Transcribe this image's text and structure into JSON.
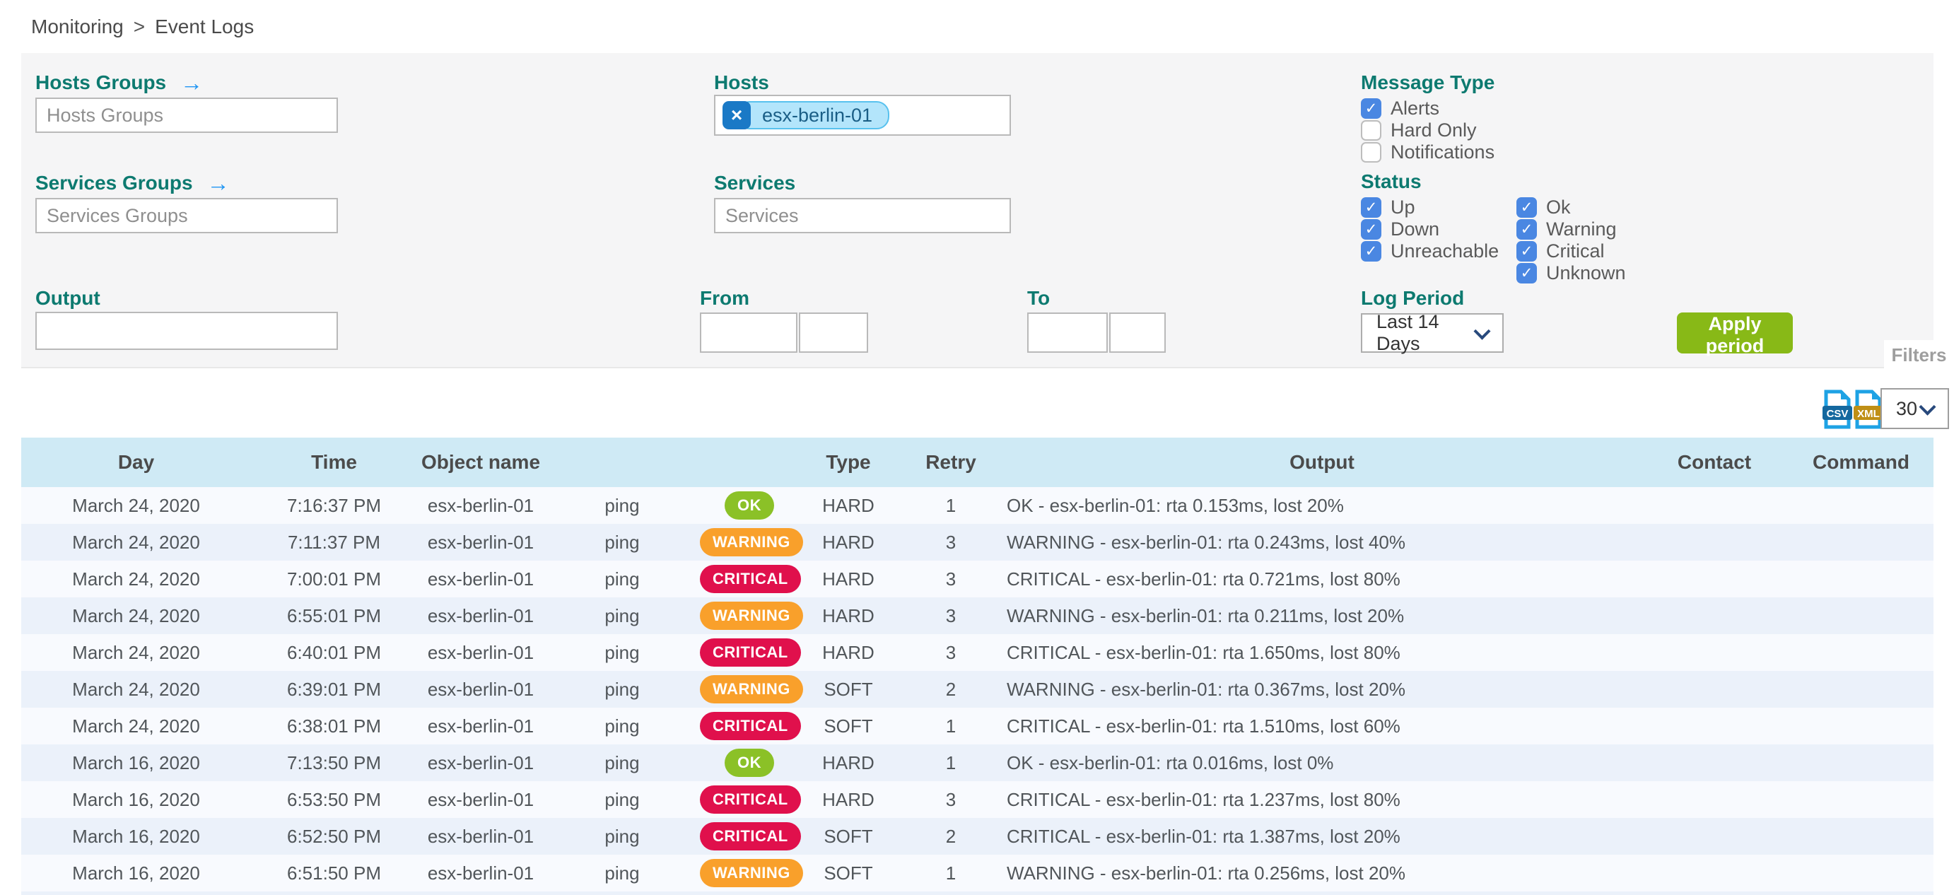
{
  "breadcrumb": {
    "items": [
      "Monitoring",
      "Event Logs"
    ],
    "separator": ">"
  },
  "filters": {
    "hosts_groups": {
      "label": "Hosts Groups",
      "placeholder": "Hosts Groups",
      "value": ""
    },
    "services_groups": {
      "label": "Services Groups",
      "placeholder": "Services Groups",
      "value": ""
    },
    "hosts": {
      "label": "Hosts",
      "chips": [
        "esx-berlin-01"
      ]
    },
    "services": {
      "label": "Services",
      "placeholder": "Services",
      "value": ""
    },
    "output": {
      "label": "Output",
      "value": ""
    },
    "from": {
      "label": "From",
      "date_value": "",
      "time_value": ""
    },
    "to": {
      "label": "To",
      "date_value": "",
      "time_value": ""
    },
    "message_type": {
      "label": "Message Type",
      "options": [
        {
          "label": "Alerts",
          "checked": true
        },
        {
          "label": "Hard Only",
          "checked": false
        },
        {
          "label": "Notifications",
          "checked": false
        }
      ]
    },
    "status": {
      "label": "Status",
      "host_options": [
        {
          "label": "Up",
          "checked": true
        },
        {
          "label": "Down",
          "checked": true
        },
        {
          "label": "Unreachable",
          "checked": true
        }
      ],
      "service_options": [
        {
          "label": "Ok",
          "checked": true
        },
        {
          "label": "Warning",
          "checked": true
        },
        {
          "label": "Critical",
          "checked": true
        },
        {
          "label": "Unknown",
          "checked": true
        }
      ]
    },
    "log_period": {
      "label": "Log Period",
      "selected": "Last 14 Days"
    },
    "apply_button_label": "Apply period",
    "filters_tab_label": "Filters"
  },
  "toolbar": {
    "export_csv_label": "CSV",
    "export_xml_label": "XML",
    "page_size_selected": "30"
  },
  "table": {
    "columns": [
      "Day",
      "Time",
      "Object name",
      "",
      "",
      "Type",
      "Retry",
      "Output",
      "Contact",
      "Command"
    ],
    "rows": [
      {
        "day": "March 24, 2020",
        "time": "7:16:37 PM",
        "object": "esx-berlin-01",
        "service": "ping",
        "status": "OK",
        "type": "HARD",
        "retry": "1",
        "output": "OK - esx-berlin-01: rta 0.153ms, lost 20%",
        "contact": "",
        "command": ""
      },
      {
        "day": "March 24, 2020",
        "time": "7:11:37 PM",
        "object": "esx-berlin-01",
        "service": "ping",
        "status": "WARNING",
        "type": "HARD",
        "retry": "3",
        "output": "WARNING - esx-berlin-01: rta 0.243ms, lost 40%",
        "contact": "",
        "command": ""
      },
      {
        "day": "March 24, 2020",
        "time": "7:00:01 PM",
        "object": "esx-berlin-01",
        "service": "ping",
        "status": "CRITICAL",
        "type": "HARD",
        "retry": "3",
        "output": "CRITICAL - esx-berlin-01: rta 0.721ms, lost 80%",
        "contact": "",
        "command": ""
      },
      {
        "day": "March 24, 2020",
        "time": "6:55:01 PM",
        "object": "esx-berlin-01",
        "service": "ping",
        "status": "WARNING",
        "type": "HARD",
        "retry": "3",
        "output": "WARNING - esx-berlin-01: rta 0.211ms, lost 20%",
        "contact": "",
        "command": ""
      },
      {
        "day": "March 24, 2020",
        "time": "6:40:01 PM",
        "object": "esx-berlin-01",
        "service": "ping",
        "status": "CRITICAL",
        "type": "HARD",
        "retry": "3",
        "output": "CRITICAL - esx-berlin-01: rta 1.650ms, lost 80%",
        "contact": "",
        "command": ""
      },
      {
        "day": "March 24, 2020",
        "time": "6:39:01 PM",
        "object": "esx-berlin-01",
        "service": "ping",
        "status": "WARNING",
        "type": "SOFT",
        "retry": "2",
        "output": "WARNING - esx-berlin-01: rta 0.367ms, lost 20%",
        "contact": "",
        "command": ""
      },
      {
        "day": "March 24, 2020",
        "time": "6:38:01 PM",
        "object": "esx-berlin-01",
        "service": "ping",
        "status": "CRITICAL",
        "type": "SOFT",
        "retry": "1",
        "output": "CRITICAL - esx-berlin-01: rta 1.510ms, lost 60%",
        "contact": "",
        "command": ""
      },
      {
        "day": "March 16, 2020",
        "time": "7:13:50 PM",
        "object": "esx-berlin-01",
        "service": "ping",
        "status": "OK",
        "type": "HARD",
        "retry": "1",
        "output": "OK - esx-berlin-01: rta 0.016ms, lost 0%",
        "contact": "",
        "command": ""
      },
      {
        "day": "March 16, 2020",
        "time": "6:53:50 PM",
        "object": "esx-berlin-01",
        "service": "ping",
        "status": "CRITICAL",
        "type": "HARD",
        "retry": "3",
        "output": "CRITICAL - esx-berlin-01: rta 1.237ms, lost 80%",
        "contact": "",
        "command": ""
      },
      {
        "day": "March 16, 2020",
        "time": "6:52:50 PM",
        "object": "esx-berlin-01",
        "service": "ping",
        "status": "CRITICAL",
        "type": "SOFT",
        "retry": "2",
        "output": "CRITICAL - esx-berlin-01: rta 1.387ms, lost 20%",
        "contact": "",
        "command": ""
      },
      {
        "day": "March 16, 2020",
        "time": "6:51:50 PM",
        "object": "esx-berlin-01",
        "service": "ping",
        "status": "WARNING",
        "type": "SOFT",
        "retry": "1",
        "output": "WARNING - esx-berlin-01: rta 0.256ms, lost 20%",
        "contact": "",
        "command": ""
      }
    ]
  },
  "colors": {
    "label_teal": "#0d7a70",
    "checkbox_blue": "#4a87e2",
    "apply_green": "#88b917",
    "badge_ok": "#8bc127",
    "badge_warning": "#f9a02b",
    "badge_critical": "#e0104c",
    "table_header_blue": "#cfeaf5",
    "row_alt": "#ebf1fa",
    "chip_bg": "#b3e5fb",
    "chip_remove_bg": "#1a79c6"
  }
}
